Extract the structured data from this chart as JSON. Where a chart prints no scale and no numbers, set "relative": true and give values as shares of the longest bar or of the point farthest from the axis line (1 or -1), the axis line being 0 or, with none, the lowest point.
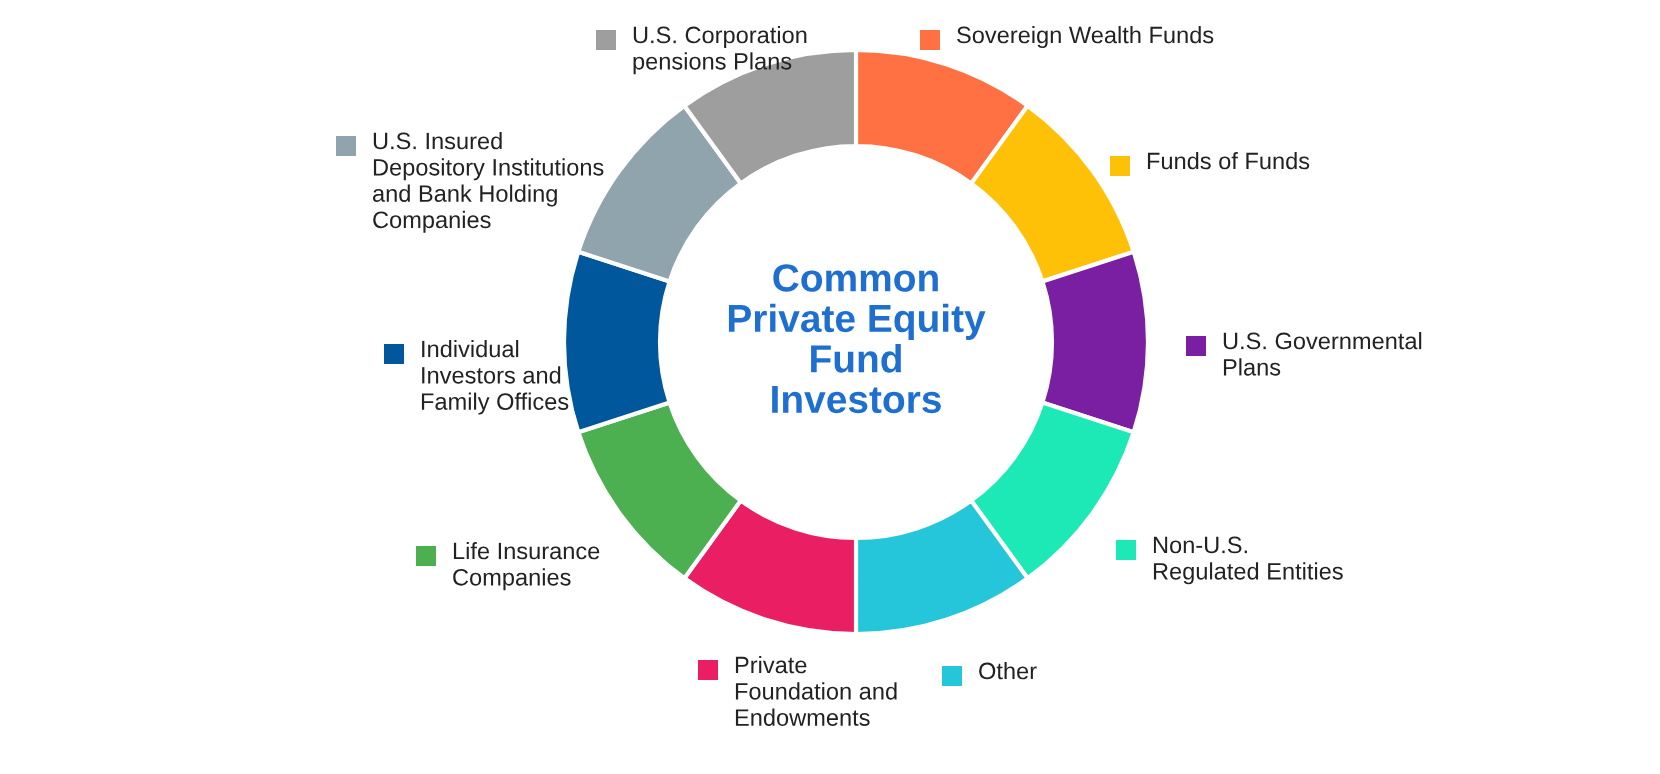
{
  "chart_data": {
    "type": "donut",
    "title": "Common\nPrivate Equity\nFund\nInvestors",
    "relative": true,
    "legend": "right",
    "categories": [
      "Sovereign Wealth Funds",
      "Funds of Funds",
      "U.S. Governmental\nPlans",
      "Non-U.S.\nRegulated Entities",
      "Other",
      "Private\nFoundation and\nEndowments",
      "Life Insurance\nCompanies",
      "Individual\nInvestors and\nFamily Offices",
      "U.S. Insured\nDepository Institutions\nand Bank Holding\nCompanies",
      "U.S. Corporation\npensions Plans"
    ],
    "values": [
      10,
      10,
      10,
      10,
      10,
      10,
      10,
      10,
      10,
      10
    ],
    "colors": [
      "#ff7043",
      "#ffc107",
      "#7b1fa2",
      "#1de9b6",
      "#26c6da",
      "#e91e63",
      "#4caf50",
      "#01579b",
      "#90a4ae",
      "#9e9e9e"
    ]
  }
}
